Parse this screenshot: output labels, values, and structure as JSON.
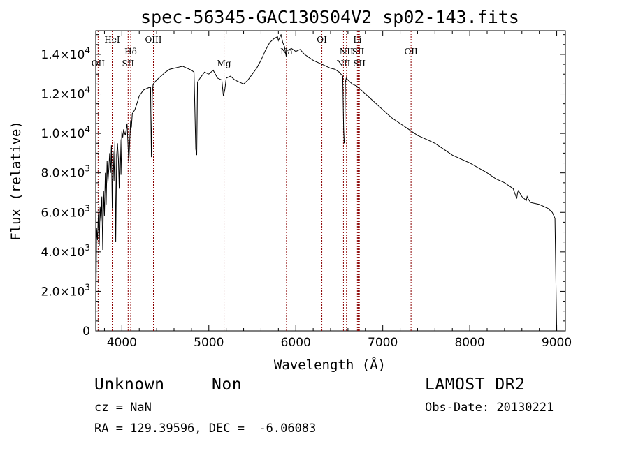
{
  "chart_data": {
    "type": "line",
    "title": "spec-56345-GAC130S04V2_sp02-143.fits",
    "xlabel": "Wavelength (Å)",
    "ylabel": "Flux (relative)",
    "xlim": [
      3700,
      9100
    ],
    "ylim": [
      0,
      15200
    ],
    "x_ticks": [
      4000,
      5000,
      6000,
      7000,
      8000,
      9000
    ],
    "y_ticks": [
      {
        "value": 0,
        "mantissa": "0",
        "exp": ""
      },
      {
        "value": 2000,
        "mantissa": "2.0×10",
        "exp": "3"
      },
      {
        "value": 4000,
        "mantissa": "4.0×10",
        "exp": "3"
      },
      {
        "value": 6000,
        "mantissa": "6.0×10",
        "exp": "3"
      },
      {
        "value": 8000,
        "mantissa": "8.0×10",
        "exp": "3"
      },
      {
        "value": 10000,
        "mantissa": "1.0×10",
        "exp": "4"
      },
      {
        "value": 12000,
        "mantissa": "1.2×10",
        "exp": "4"
      },
      {
        "value": 14000,
        "mantissa": "1.4×10",
        "exp": "4"
      }
    ],
    "series": [
      {
        "x": [
          3700,
          3710,
          3720,
          3730,
          3740,
          3750,
          3760,
          3770,
          3780,
          3790,
          3800,
          3810,
          3820,
          3830,
          3840,
          3850,
          3860,
          3870,
          3880,
          3890,
          3900,
          3910,
          3920,
          3930,
          3940,
          3950,
          3960,
          3970,
          3980,
          3990,
          4000,
          4010,
          4020,
          4040,
          4060,
          4080,
          4100,
          4110,
          4120,
          4150,
          4180,
          4200,
          4250,
          4300,
          4330,
          4340,
          4350,
          4360,
          4400,
          4450,
          4500,
          4550,
          4600,
          4650,
          4700,
          4750,
          4800,
          4830,
          4850,
          4861,
          4870,
          4900,
          4950,
          5000,
          5050,
          5100,
          5150,
          5167,
          5183,
          5200,
          5250,
          5300,
          5350,
          5400,
          5450,
          5500,
          5550,
          5600,
          5650,
          5700,
          5750,
          5790,
          5800,
          5830,
          5850,
          5870,
          5890,
          5900,
          5950,
          6000,
          6050,
          6100,
          6150,
          6200,
          6250,
          6300,
          6350,
          6400,
          6450,
          6500,
          6540,
          6550,
          6556,
          6563,
          6570,
          6580,
          6600,
          6650,
          6700,
          6750,
          6800,
          6900,
          7000,
          7100,
          7200,
          7300,
          7400,
          7500,
          7600,
          7700,
          7800,
          7900,
          8000,
          8100,
          8200,
          8300,
          8400,
          8500,
          8540,
          8550,
          8560,
          8600,
          8650,
          8660,
          8670,
          8700,
          8800,
          8900,
          8950,
          8980,
          8990,
          9000
        ],
        "y": [
          0,
          5200,
          4600,
          5900,
          4300,
          6300,
          5500,
          6800,
          4100,
          7100,
          5800,
          8000,
          6400,
          8600,
          7500,
          8200,
          9000,
          8000,
          9400,
          6200,
          9100,
          7600,
          9600,
          4500,
          8900,
          9500,
          8700,
          7200,
          9700,
          7900,
          10100,
          9800,
          10200,
          9900,
          10500,
          8500,
          10600,
          10300,
          11000,
          11200,
          11600,
          11900,
          12200,
          12300,
          12350,
          8800,
          12000,
          12500,
          12700,
          12900,
          13100,
          13250,
          13300,
          13350,
          13400,
          13300,
          13200,
          13100,
          9200,
          8900,
          12600,
          12800,
          13100,
          13000,
          13200,
          12800,
          12700,
          11900,
          12200,
          12800,
          12900,
          12700,
          12600,
          12500,
          12700,
          13000,
          13300,
          13700,
          14200,
          14600,
          14800,
          14900,
          14700,
          15000,
          14600,
          14400,
          13900,
          14200,
          14300,
          14150,
          14250,
          14000,
          13850,
          13700,
          13600,
          13500,
          13400,
          13300,
          13250,
          13100,
          12900,
          10200,
          9500,
          9700,
          12600,
          12800,
          12700,
          12500,
          12400,
          12200,
          12000,
          11600,
          11200,
          10800,
          10500,
          10200,
          9900,
          9700,
          9500,
          9200,
          8900,
          8700,
          8500,
          8250,
          8000,
          7700,
          7500,
          7200,
          6700,
          7000,
          7100,
          6800,
          6600,
          6800,
          6700,
          6500,
          6400,
          6200,
          6000,
          5700,
          2800,
          0
        ]
      }
    ],
    "emission_lines": [
      {
        "label": "OII",
        "x": 3727,
        "row": 3
      },
      {
        "label": "HeI",
        "x": 3889,
        "row": 1
      },
      {
        "label": "Hδ",
        "x": 4102,
        "row": 2
      },
      {
        "label": "SII",
        "x": 4072,
        "row": 3
      },
      {
        "label": "OIII",
        "x": 4363,
        "row": 1
      },
      {
        "label": "Mg",
        "x": 5175,
        "row": 3
      },
      {
        "label": "Na",
        "x": 5893,
        "row": 2
      },
      {
        "label": "OI",
        "x": 6300,
        "row": 1
      },
      {
        "label": "NII",
        "x": 6548,
        "row": 3
      },
      {
        "label": "NII",
        "x": 6583,
        "row": 2
      },
      {
        "label": "Li",
        "x": 6708,
        "row": 1
      },
      {
        "label": "SII",
        "x": 6717,
        "row": 2
      },
      {
        "label": "SII",
        "x": 6731,
        "row": 3
      },
      {
        "label": "OII",
        "x": 7325,
        "row": 2
      }
    ],
    "grid": false,
    "line_color": "#000000",
    "marker_color": "#8b0000"
  },
  "footer": {
    "object_class": "Unknown",
    "subclass": "Non",
    "survey": "LAMOST DR2",
    "cz": "cz = NaN",
    "obs_date": "Obs-Date: 20130221",
    "coords": "RA = 129.39596, DEC =  -6.06083"
  }
}
